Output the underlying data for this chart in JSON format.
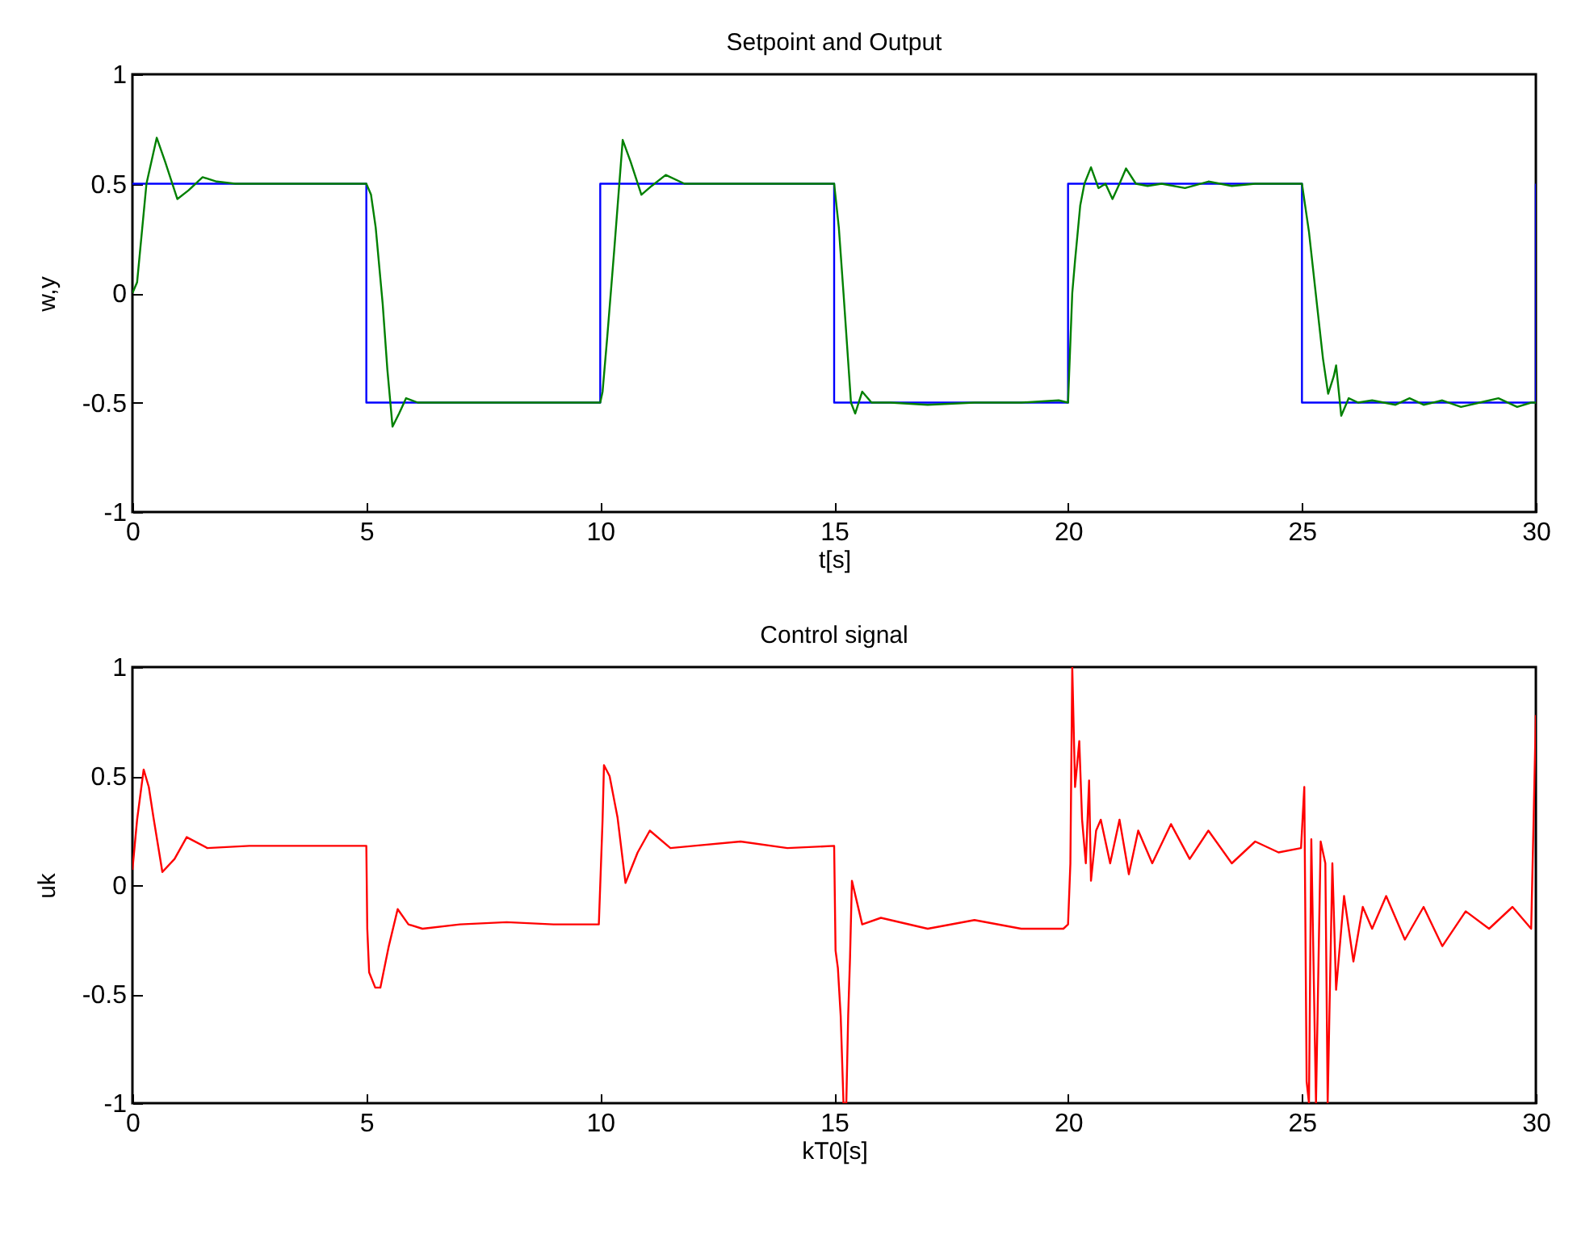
{
  "chart_data": [
    {
      "type": "line",
      "title": "Setpoint and Output",
      "xlabel": "t[s]",
      "ylabel": "w,y",
      "xlim": [
        0,
        30
      ],
      "ylim": [
        -1,
        1
      ],
      "xticks": [
        0,
        5,
        10,
        15,
        20,
        25,
        30
      ],
      "yticks": [
        -1,
        -0.5,
        0,
        0.5,
        1
      ],
      "grid": false,
      "line_style": "solid",
      "marker": "none",
      "series": [
        {
          "type": "step",
          "color": "#0000ff",
          "x": [
            0,
            5,
            10,
            15,
            20,
            25,
            30,
            30
          ],
          "values": [
            0.5,
            -0.5,
            0.5,
            -0.5,
            0.5,
            -0.5,
            0.5,
            0.5
          ]
        },
        {
          "type": "line",
          "color": "#008000",
          "x": [
            0,
            0.1,
            0.3,
            0.52,
            0.7,
            0.96,
            1.2,
            1.5,
            1.8,
            2.2,
            3,
            4,
            5,
            5.1,
            5.2,
            5.35,
            5.45,
            5.56,
            5.7,
            5.85,
            6.1,
            6.5,
            8,
            9,
            10,
            10.05,
            10.15,
            10.3,
            10.48,
            10.65,
            10.88,
            11.1,
            11.4,
            11.8,
            12.5,
            14,
            15,
            15.1,
            15.2,
            15.36,
            15.45,
            15.6,
            15.8,
            16.2,
            17,
            18,
            19,
            19.8,
            20,
            20.09,
            20.15,
            20.26,
            20.35,
            20.49,
            20.65,
            20.8,
            20.95,
            21.1,
            21.24,
            21.45,
            21.7,
            22,
            22.5,
            23,
            23.5,
            24,
            24.5,
            25,
            25.15,
            25.33,
            25.45,
            25.56,
            25.68,
            25.73,
            25.84,
            26,
            26.2,
            26.5,
            27,
            27.3,
            27.6,
            28,
            28.4,
            28.8,
            29.2,
            29.6,
            29.9,
            30
          ],
          "values": [
            0,
            0.05,
            0.5,
            0.71,
            0.6,
            0.43,
            0.47,
            0.53,
            0.51,
            0.5,
            0.5,
            0.5,
            0.5,
            0.45,
            0.3,
            -0.05,
            -0.35,
            -0.61,
            -0.55,
            -0.48,
            -0.5,
            -0.5,
            -0.5,
            -0.5,
            -0.5,
            -0.45,
            -0.2,
            0.2,
            0.7,
            0.6,
            0.45,
            0.49,
            0.54,
            0.5,
            0.5,
            0.5,
            0.5,
            0.3,
            0,
            -0.5,
            -0.55,
            -0.45,
            -0.5,
            -0.5,
            -0.51,
            -0.5,
            -0.5,
            -0.49,
            -0.5,
            0,
            0.15,
            0.4,
            0.5,
            0.575,
            0.48,
            0.5,
            0.43,
            0.5,
            0.57,
            0.5,
            0.49,
            0.5,
            0.48,
            0.51,
            0.49,
            0.5,
            0.5,
            0.5,
            0.28,
            -0.07,
            -0.3,
            -0.46,
            -0.38,
            -0.33,
            -0.56,
            -0.48,
            -0.5,
            -0.49,
            -0.51,
            -0.48,
            -0.51,
            -0.49,
            -0.52,
            -0.5,
            -0.48,
            -0.52,
            -0.5,
            -0.5
          ]
        }
      ]
    },
    {
      "type": "line",
      "title": "Control signal",
      "xlabel": "kT0[s]",
      "ylabel": "uk",
      "xlim": [
        0,
        30
      ],
      "ylim": [
        -1,
        1
      ],
      "xticks": [
        0,
        5,
        10,
        15,
        20,
        25,
        30
      ],
      "yticks": [
        -1,
        -0.5,
        0,
        0.5,
        1
      ],
      "grid": false,
      "line_style": "solid",
      "marker": "none",
      "series": [
        {
          "type": "line",
          "color": "#ff0000",
          "x": [
            0,
            0.1,
            0.24,
            0.35,
            0.45,
            0.64,
            0.9,
            1.16,
            1.6,
            2.5,
            3.5,
            5,
            5.02,
            5.06,
            5.19,
            5.3,
            5.48,
            5.67,
            5.9,
            6.2,
            7,
            8,
            9,
            9.97,
            10,
            10.05,
            10.08,
            10.2,
            10.37,
            10.54,
            10.8,
            11.06,
            11.5,
            12,
            13,
            14,
            15,
            15.03,
            15.08,
            15.14,
            15.2,
            15.26,
            15.3,
            15.34,
            15.38,
            15.6,
            16,
            17,
            18,
            19,
            19.9,
            20,
            20.05,
            20.09,
            20.15,
            20.24,
            20.3,
            20.38,
            20.45,
            20.49,
            20.6,
            20.7,
            20.9,
            21.1,
            21.3,
            21.5,
            21.8,
            22.2,
            22.6,
            23,
            23.5,
            24,
            24.5,
            24.98,
            25.05,
            25.1,
            25.15,
            25.2,
            25.3,
            25.4,
            25.5,
            25.55,
            25.65,
            25.73,
            25.9,
            26.1,
            26.3,
            26.5,
            26.8,
            27.2,
            27.6,
            28,
            28.5,
            29,
            29.5,
            29.9,
            29.95,
            30
          ],
          "values": [
            0.07,
            0.3,
            0.53,
            0.45,
            0.31,
            0.06,
            0.12,
            0.22,
            0.17,
            0.18,
            0.18,
            0.18,
            -0.2,
            -0.4,
            -0.47,
            -0.47,
            -0.28,
            -0.11,
            -0.18,
            -0.2,
            -0.18,
            -0.17,
            -0.18,
            -0.18,
            0,
            0.3,
            0.55,
            0.5,
            0.31,
            0.01,
            0.15,
            0.25,
            0.17,
            0.18,
            0.2,
            0.17,
            0.18,
            -0.3,
            -0.38,
            -0.6,
            -1,
            -1,
            -0.6,
            -0.33,
            0.02,
            -0.18,
            -0.15,
            -0.2,
            -0.16,
            -0.2,
            -0.2,
            -0.18,
            0.1,
            1,
            0.45,
            0.66,
            0.3,
            0.1,
            0.48,
            0.02,
            0.25,
            0.3,
            0.1,
            0.3,
            0.05,
            0.25,
            0.1,
            0.28,
            0.12,
            0.25,
            0.1,
            0.2,
            0.15,
            0.17,
            0.45,
            -0.9,
            -1,
            0.21,
            -1,
            0.2,
            0.1,
            -1,
            0.1,
            -0.48,
            -0.05,
            -0.35,
            -0.1,
            -0.2,
            -0.05,
            -0.25,
            -0.1,
            -0.28,
            -0.12,
            -0.2,
            -0.1,
            -0.2,
            0.28,
            0.78
          ]
        }
      ]
    }
  ]
}
